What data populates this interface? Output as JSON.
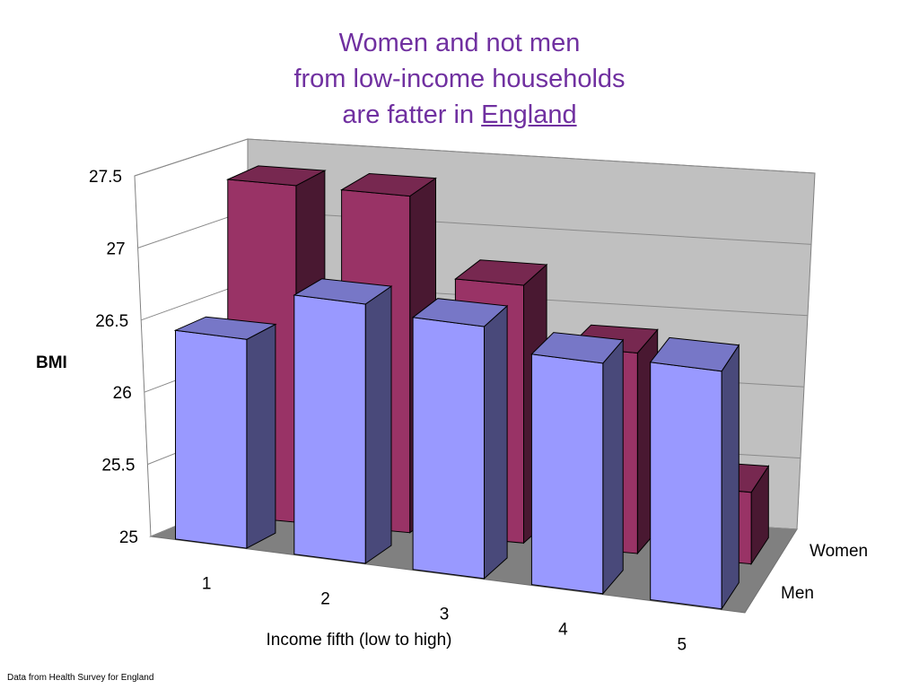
{
  "slide": {
    "title_line1": "Women and not men",
    "title_line2": "from low-income households",
    "title_line3_prefix": "are fatter in",
    "title_line3_link": "England",
    "source_note": "Data from Health Survey for England"
  },
  "chart_data": {
    "type": "bar",
    "style": "3d-clustered-depth",
    "categories": [
      "1",
      "2",
      "3",
      "4",
      "5"
    ],
    "series": [
      {
        "name": "Men",
        "values": [
          26.45,
          26.8,
          26.75,
          26.6,
          26.65
        ],
        "color": "#9999ff"
      },
      {
        "name": "Women",
        "values": [
          27.35,
          27.35,
          26.8,
          26.4,
          25.5
        ],
        "color": "#993366"
      }
    ],
    "xlabel": "Income fifth (low to high)",
    "ylabel": "BMI",
    "ylim": [
      25,
      27.5
    ],
    "yticks": [
      "25",
      "25.5",
      "26",
      "26.5",
      "27",
      "27.5"
    ],
    "grid": true,
    "colors": {
      "title": "#7030a0",
      "wall": "#c0c0c0",
      "floor": "#808080"
    }
  }
}
